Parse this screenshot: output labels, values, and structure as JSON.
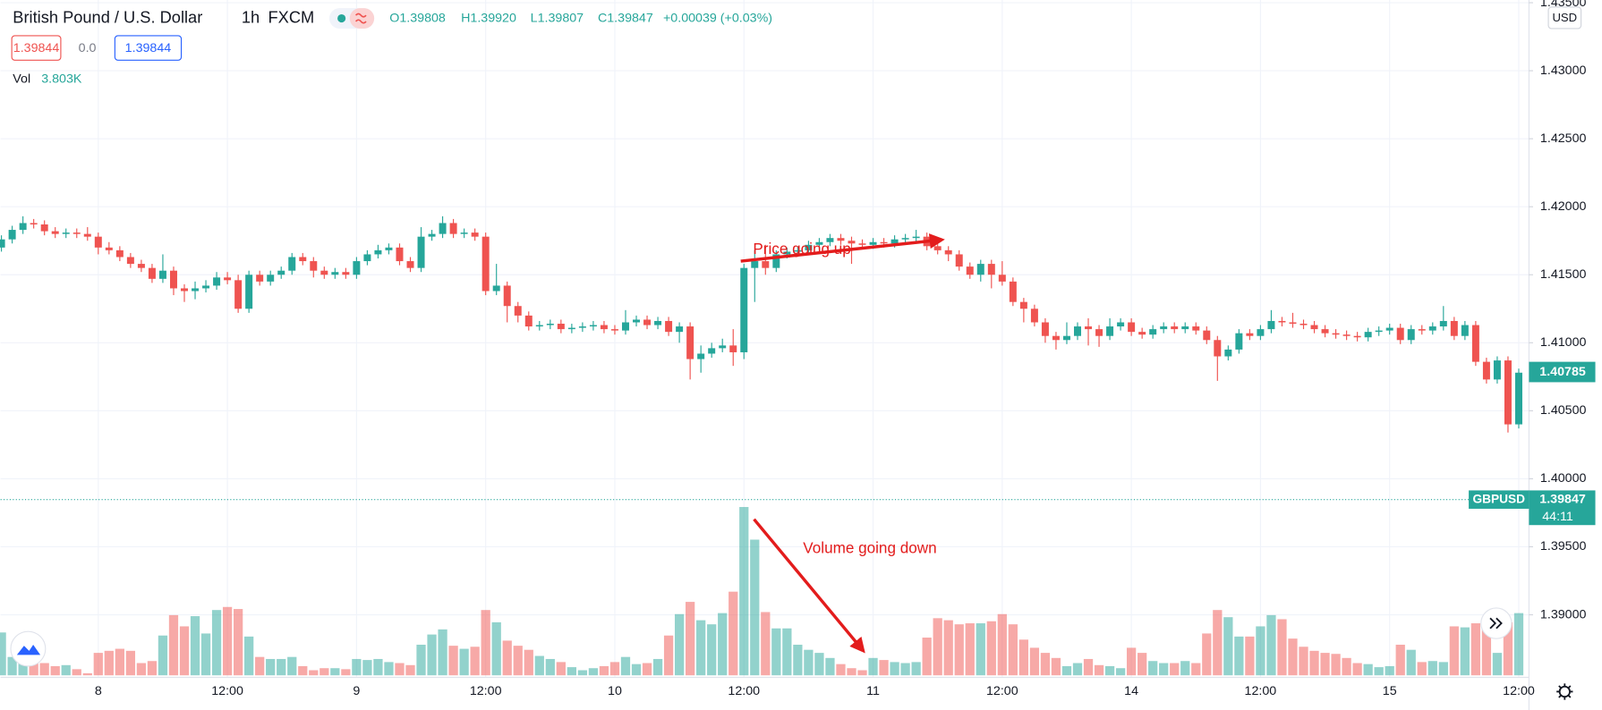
{
  "header": {
    "symbol": "British Pound / U.S. Dollar",
    "interval": "1h",
    "exchange": "FXCM",
    "ohlc": [
      "O1.39808",
      "H1.39920",
      "L1.39807",
      "C1.39847",
      "+0.00039 (+0.03%)"
    ],
    "sell": "1.39844",
    "spread": "0.0",
    "buy": "1.39844",
    "volume_label": "Vol",
    "volume_value": "3.803K"
  },
  "chart_data": {
    "type": "candlestick",
    "currency": "USD",
    "up_color": "#26a69a",
    "down_color": "#ef5350",
    "grid": true,
    "ylim": [
      1.3854,
      1.4352
    ],
    "yticks": [
      {
        "value": 1.39,
        "label": "1.39000"
      },
      {
        "value": 1.395,
        "label": "1.39500"
      },
      {
        "value": 1.4,
        "label": "1.40000"
      },
      {
        "value": 1.405,
        "label": "1.40500"
      },
      {
        "value": 1.41,
        "label": "1.41000"
      },
      {
        "value": 1.415,
        "label": "1.41500"
      },
      {
        "value": 1.42,
        "label": "1.42000"
      },
      {
        "value": 1.425,
        "label": "1.42500"
      },
      {
        "value": 1.43,
        "label": "1.43000"
      },
      {
        "value": 1.435,
        "label": "1.43500"
      }
    ],
    "categories": [
      null,
      null,
      null,
      null,
      null,
      null,
      null,
      null,
      null,
      "8",
      null,
      null,
      null,
      null,
      null,
      null,
      null,
      null,
      null,
      null,
      null,
      "12:00",
      null,
      null,
      null,
      null,
      null,
      null,
      null,
      null,
      null,
      null,
      null,
      "9",
      null,
      null,
      null,
      null,
      null,
      null,
      null,
      null,
      null,
      null,
      null,
      "12:00",
      null,
      null,
      null,
      null,
      null,
      null,
      null,
      null,
      null,
      null,
      null,
      "10",
      null,
      null,
      null,
      null,
      null,
      null,
      null,
      null,
      null,
      null,
      null,
      "12:00",
      null,
      null,
      null,
      null,
      null,
      null,
      null,
      null,
      null,
      null,
      null,
      "11",
      null,
      null,
      null,
      null,
      null,
      null,
      null,
      null,
      null,
      null,
      null,
      "12:00",
      null,
      null,
      null,
      null,
      null,
      null,
      null,
      null,
      null,
      null,
      null,
      "14",
      null,
      null,
      null,
      null,
      null,
      null,
      null,
      null,
      null,
      null,
      null,
      "12:00",
      null,
      null,
      null,
      null,
      null,
      null,
      null,
      null,
      null,
      null,
      null,
      "15",
      null,
      null,
      null,
      null,
      null,
      null,
      null,
      null,
      null,
      null,
      null,
      "12:00"
    ],
    "open": [
      1.417,
      1.4176,
      1.4183,
      1.4188,
      1.4187,
      1.4182,
      1.418,
      1.4181,
      1.418,
      1.4178,
      1.417,
      1.4168,
      1.4163,
      1.4158,
      1.4155,
      1.4147,
      1.4153,
      1.414,
      1.4138,
      1.414,
      1.4142,
      1.4148,
      1.4146,
      1.4125,
      1.415,
      1.4145,
      1.415,
      1.4153,
      1.4163,
      1.416,
      1.4153,
      1.415,
      1.4152,
      1.415,
      1.416,
      1.4165,
      1.4168,
      1.417,
      1.416,
      1.4155,
      1.4178,
      1.418,
      1.4188,
      1.418,
      1.4181,
      1.4178,
      1.4138,
      1.4142,
      1.4127,
      1.412,
      1.4112,
      1.4113,
      1.4114,
      1.411,
      1.4111,
      1.4112,
      1.4113,
      1.411,
      1.4109,
      1.4115,
      1.4117,
      1.4113,
      1.4116,
      1.4108,
      1.4112,
      1.4088,
      1.4092,
      1.4096,
      1.4098,
      1.4093,
      1.4155,
      1.416,
      1.4155,
      1.4165,
      1.4167,
      1.4168,
      1.4172,
      1.4174,
      1.4177,
      1.4175,
      1.4173,
      1.4172,
      1.4174,
      1.4173,
      1.4176,
      1.4177,
      1.4178,
      1.4171,
      1.4168,
      1.4165,
      1.4156,
      1.415,
      1.4158,
      1.415,
      1.4145,
      1.413,
      1.4125,
      1.4115,
      1.4105,
      1.4102,
      1.4105,
      1.4112,
      1.411,
      1.4105,
      1.4112,
      1.4115,
      1.4108,
      1.4106,
      1.411,
      1.4112,
      1.411,
      1.4112,
      1.4109,
      1.4102,
      1.409,
      1.4095,
      1.4107,
      1.4105,
      1.411,
      1.4116,
      1.4115,
      1.4114,
      1.4113,
      1.411,
      1.4107,
      1.4106,
      1.4105,
      1.4104,
      1.4108,
      1.4109,
      1.4111,
      1.4102,
      1.411,
      1.4109,
      1.4112,
      1.4116,
      1.4105,
      1.4113,
      1.4086,
      1.4073,
      1.4087,
      1.404
    ],
    "high": [
      1.4179,
      1.4186,
      1.4193,
      1.4191,
      1.419,
      1.4185,
      1.4184,
      1.4184,
      1.4185,
      1.4181,
      1.4174,
      1.4171,
      1.4166,
      1.4161,
      1.4158,
      1.4165,
      1.4156,
      1.4143,
      1.4145,
      1.4146,
      1.4152,
      1.4152,
      1.415,
      1.4153,
      1.4153,
      1.4153,
      1.4156,
      1.4166,
      1.4166,
      1.4163,
      1.4156,
      1.4155,
      1.4155,
      1.4163,
      1.4168,
      1.4172,
      1.4173,
      1.4173,
      1.4163,
      1.4185,
      1.4183,
      1.4193,
      1.4191,
      1.4184,
      1.4184,
      1.4181,
      1.4158,
      1.4145,
      1.413,
      1.4123,
      1.4116,
      1.4117,
      1.4117,
      1.4114,
      1.4115,
      1.4116,
      1.4116,
      1.4113,
      1.4124,
      1.412,
      1.412,
      1.4119,
      1.4119,
      1.4115,
      1.4115,
      1.4098,
      1.41,
      1.4103,
      1.411,
      1.4158,
      1.4168,
      1.4172,
      1.4168,
      1.417,
      1.4171,
      1.4175,
      1.4177,
      1.418,
      1.418,
      1.4178,
      1.4176,
      1.4177,
      1.4177,
      1.4179,
      1.418,
      1.4183,
      1.4181,
      1.4174,
      1.4171,
      1.4168,
      1.4159,
      1.4161,
      1.4161,
      1.416,
      1.4148,
      1.4133,
      1.4128,
      1.4118,
      1.4108,
      1.4115,
      1.4115,
      1.4118,
      1.4113,
      1.4118,
      1.4118,
      1.4118,
      1.4111,
      1.4113,
      1.4115,
      1.4115,
      1.4115,
      1.4115,
      1.4112,
      1.4105,
      1.4098,
      1.411,
      1.411,
      1.4113,
      1.4124,
      1.4119,
      1.4122,
      1.4117,
      1.4116,
      1.4113,
      1.411,
      1.4109,
      1.4108,
      1.4111,
      1.4112,
      1.4114,
      1.4114,
      1.4113,
      1.4113,
      1.4115,
      1.4127,
      1.4119,
      1.4116,
      1.4116,
      1.4089,
      1.409,
      1.409,
      1.4081
    ],
    "low": [
      1.4167,
      1.4173,
      1.418,
      1.4184,
      1.4179,
      1.4177,
      1.4177,
      1.4177,
      1.4175,
      1.4165,
      1.4165,
      1.416,
      1.4155,
      1.4152,
      1.4144,
      1.4144,
      1.4135,
      1.413,
      1.4132,
      1.4137,
      1.4139,
      1.4143,
      1.4122,
      1.4122,
      1.4142,
      1.4142,
      1.4147,
      1.415,
      1.4157,
      1.4148,
      1.4147,
      1.4147,
      1.4147,
      1.4147,
      1.4157,
      1.4162,
      1.4165,
      1.4157,
      1.4152,
      1.4152,
      1.4175,
      1.4177,
      1.4177,
      1.4177,
      1.4175,
      1.4135,
      1.4135,
      1.4115,
      1.4115,
      1.4109,
      1.4109,
      1.411,
      1.4107,
      1.4107,
      1.4108,
      1.4109,
      1.4107,
      1.4106,
      1.4106,
      1.4112,
      1.411,
      1.411,
      1.4105,
      1.41,
      1.4073,
      1.4078,
      1.4089,
      1.4093,
      1.4083,
      1.4088,
      1.413,
      1.415,
      1.4152,
      1.4162,
      1.4164,
      1.4165,
      1.4169,
      1.4171,
      1.4172,
      1.4158,
      1.4169,
      1.4169,
      1.417,
      1.417,
      1.4173,
      1.4174,
      1.4168,
      1.4165,
      1.416,
      1.4153,
      1.4147,
      1.4145,
      1.414,
      1.4142,
      1.4127,
      1.4115,
      1.4112,
      1.41,
      1.4095,
      1.4099,
      1.4102,
      1.4098,
      1.4097,
      1.4102,
      1.4109,
      1.4105,
      1.4103,
      1.4103,
      1.4107,
      1.4107,
      1.4107,
      1.4106,
      1.4099,
      1.4072,
      1.4087,
      1.4092,
      1.4102,
      1.4102,
      1.4107,
      1.4112,
      1.4111,
      1.411,
      1.4107,
      1.4104,
      1.4103,
      1.4102,
      1.4101,
      1.4101,
      1.4105,
      1.4106,
      1.4099,
      1.4099,
      1.4106,
      1.4106,
      1.4109,
      1.4102,
      1.4102,
      1.4083,
      1.407,
      1.407,
      1.4034,
      1.4037
    ],
    "close": [
      1.4176,
      1.4183,
      1.4188,
      1.4187,
      1.4182,
      1.418,
      1.4181,
      1.418,
      1.4178,
      1.417,
      1.4168,
      1.4163,
      1.4158,
      1.4155,
      1.4147,
      1.4153,
      1.414,
      1.4138,
      1.414,
      1.4142,
      1.4148,
      1.4146,
      1.4125,
      1.415,
      1.4145,
      1.415,
      1.4153,
      1.4163,
      1.416,
      1.4153,
      1.415,
      1.4152,
      1.415,
      1.416,
      1.4165,
      1.4168,
      1.417,
      1.416,
      1.4155,
      1.4178,
      1.418,
      1.4188,
      1.418,
      1.4181,
      1.4178,
      1.4138,
      1.4142,
      1.4127,
      1.412,
      1.4112,
      1.4113,
      1.4114,
      1.411,
      1.4111,
      1.4112,
      1.4113,
      1.411,
      1.4109,
      1.4115,
      1.4117,
      1.4113,
      1.4116,
      1.4108,
      1.4112,
      1.4088,
      1.4092,
      1.4096,
      1.4098,
      1.4093,
      1.4155,
      1.416,
      1.4155,
      1.4165,
      1.4167,
      1.4168,
      1.4172,
      1.4174,
      1.4177,
      1.4175,
      1.4173,
      1.4172,
      1.4174,
      1.4173,
      1.4176,
      1.4177,
      1.4178,
      1.4171,
      1.4168,
      1.4165,
      1.4156,
      1.415,
      1.4158,
      1.415,
      1.4145,
      1.413,
      1.4125,
      1.4115,
      1.4105,
      1.4102,
      1.4105,
      1.4112,
      1.411,
      1.4105,
      1.4112,
      1.4115,
      1.4108,
      1.4106,
      1.411,
      1.4112,
      1.411,
      1.4112,
      1.4109,
      1.4102,
      1.409,
      1.4095,
      1.4107,
      1.4105,
      1.411,
      1.4116,
      1.4115,
      1.4114,
      1.4113,
      1.411,
      1.4107,
      1.4106,
      1.4105,
      1.4104,
      1.4108,
      1.4109,
      1.4111,
      1.4102,
      1.411,
      1.4109,
      1.4112,
      1.4116,
      1.4105,
      1.4113,
      1.4086,
      1.4073,
      1.4087,
      1.404,
      1.4078
    ],
    "volume": [
      2520,
      1080,
      840,
      720,
      720,
      540,
      600,
      360,
      120,
      1320,
      1440,
      1560,
      1440,
      720,
      840,
      2340,
      3540,
      2880,
      3480,
      2460,
      3840,
      4020,
      3900,
      2280,
      1080,
      960,
      960,
      1080,
      540,
      300,
      420,
      420,
      360,
      960,
      900,
      960,
      780,
      720,
      600,
      1800,
      2400,
      2700,
      1740,
      1560,
      1680,
      3840,
      3120,
      2040,
      1740,
      1500,
      1140,
      960,
      780,
      480,
      300,
      420,
      540,
      780,
      1080,
      660,
      720,
      960,
      2340,
      3600,
      4320,
      3240,
      3000,
      3660,
      4920,
      9900,
      7980,
      3720,
      2760,
      2760,
      1800,
      1500,
      1320,
      1020,
      660,
      420,
      300,
      1020,
      900,
      780,
      720,
      780,
      2220,
      3360,
      3240,
      3000,
      3060,
      3060,
      3180,
      3600,
      3000,
      2100,
      1620,
      1320,
      1020,
      540,
      720,
      960,
      600,
      540,
      420,
      1620,
      1320,
      840,
      720,
      720,
      840,
      720,
      2460,
      3840,
      3420,
      2280,
      2280,
      2880,
      3540,
      3300,
      2160,
      1680,
      1440,
      1320,
      1260,
      1020,
      720,
      660,
      480,
      540,
      1800,
      1500,
      780,
      840,
      780,
      2880,
      2820,
      3060,
      3000,
      1320,
      3120,
      3660
    ],
    "last_price": 1.40785,
    "current_price": {
      "symbol": "GBPUSD",
      "value": 1.39847,
      "countdown": "44:11"
    },
    "annotations": [
      "Price going up",
      "Volume going down"
    ]
  }
}
